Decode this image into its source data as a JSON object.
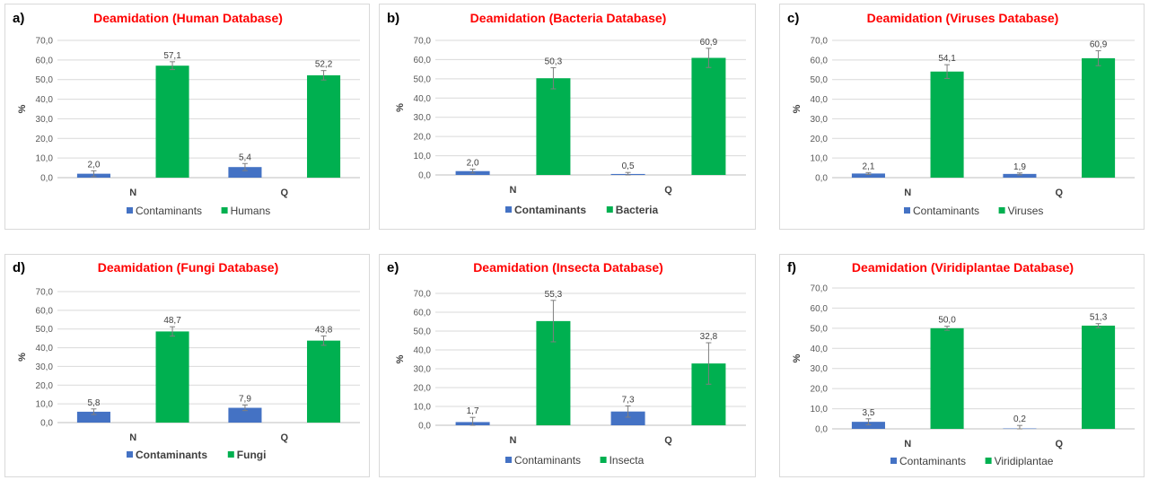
{
  "colors": {
    "contaminants": "#4472c4",
    "organism": "#00b050",
    "title": "#ff0000",
    "grid": "#d9d9d9",
    "axis": "#bfbfbf"
  },
  "chart_data": [
    {
      "panel": "a)",
      "type": "bar",
      "title": "Deamidation (Human Database)",
      "categories": [
        "N",
        "Q"
      ],
      "ylabel": "%",
      "ylim": [
        0,
        70
      ],
      "yticks": [
        "0,0",
        "10,0",
        "20,0",
        "30,0",
        "40,0",
        "50,0",
        "60,0",
        "70,0"
      ],
      "series": [
        {
          "name": "Contaminants",
          "values": [
            2.0,
            5.4
          ],
          "labels": [
            "2,0",
            "5,4"
          ],
          "errors": [
            1.5,
            1.8
          ]
        },
        {
          "name": "Humans",
          "values": [
            57.1,
            52.2
          ],
          "labels": [
            "57,1",
            "52,2"
          ],
          "errors": [
            2.0,
            2.4
          ]
        }
      ],
      "legend": "bottom",
      "grid": true
    },
    {
      "panel": "b)",
      "type": "bar",
      "title": "Deamidation (Bacteria Database)",
      "categories": [
        "N",
        "Q"
      ],
      "ylabel": "%",
      "ylim": [
        0,
        70
      ],
      "yticks": [
        "0,0",
        "10,0",
        "20,0",
        "30,0",
        "40,0",
        "50,0",
        "60,0",
        "70,0"
      ],
      "series": [
        {
          "name": "Contaminants",
          "values": [
            2.0,
            0.5
          ],
          "labels": [
            "2,0",
            "0,5"
          ],
          "errors": [
            1.0,
            0.8
          ]
        },
        {
          "name": "Bacteria",
          "values": [
            50.3,
            60.9
          ],
          "labels": [
            "50,3",
            "60,9"
          ],
          "errors": [
            5.5,
            5.0
          ]
        }
      ],
      "legend": "bottom",
      "grid": true
    },
    {
      "panel": "c)",
      "type": "bar",
      "title": "Deamidation (Viruses Database)",
      "categories": [
        "N",
        "Q"
      ],
      "ylabel": "%",
      "ylim": [
        0,
        70
      ],
      "yticks": [
        "0,0",
        "10,0",
        "20,0",
        "30,0",
        "40,0",
        "50,0",
        "60,0",
        "70,0"
      ],
      "series": [
        {
          "name": "Contaminants",
          "values": [
            2.1,
            1.9
          ],
          "labels": [
            "2,1",
            "1,9"
          ],
          "errors": [
            0.5,
            0.5
          ]
        },
        {
          "name": "Viruses",
          "values": [
            54.1,
            60.9
          ],
          "labels": [
            "54,1",
            "60,9"
          ],
          "errors": [
            3.5,
            3.8
          ]
        }
      ],
      "legend": "bottom",
      "grid": true
    },
    {
      "panel": "d)",
      "type": "bar",
      "title": "Deamidation (Fungi Database)",
      "categories": [
        "N",
        "Q"
      ],
      "ylabel": "%",
      "ylim": [
        0,
        70
      ],
      "yticks": [
        "0,0",
        "10,0",
        "20,0",
        "30,0",
        "40,0",
        "50,0",
        "60,0",
        "70,0"
      ],
      "series": [
        {
          "name": "Contaminants",
          "values": [
            5.8,
            7.9
          ],
          "labels": [
            "5,8",
            "7,9"
          ],
          "errors": [
            1.5,
            1.5
          ]
        },
        {
          "name": "Fungi",
          "values": [
            48.7,
            43.8
          ],
          "labels": [
            "48,7",
            "43,8"
          ],
          "errors": [
            2.5,
            2.5
          ]
        }
      ],
      "legend": "bottom",
      "grid": true
    },
    {
      "panel": "e)",
      "type": "bar",
      "title": "Deamidation (Insecta Database)",
      "categories": [
        "N",
        "Q"
      ],
      "ylabel": "%",
      "ylim": [
        0,
        70
      ],
      "yticks": [
        "0,0",
        "10,0",
        "20,0",
        "30,0",
        "40,0",
        "50,0",
        "60,0",
        "70,0"
      ],
      "series": [
        {
          "name": "Contaminants",
          "values": [
            1.7,
            7.3
          ],
          "labels": [
            "1,7",
            "7,3"
          ],
          "errors": [
            2.5,
            3.0
          ]
        },
        {
          "name": "Insecta",
          "values": [
            55.3,
            32.8
          ],
          "labels": [
            "55,3",
            "32,8"
          ],
          "errors": [
            11.0,
            11.0
          ]
        }
      ],
      "legend": "bottom",
      "grid": true
    },
    {
      "panel": "f)",
      "type": "bar",
      "title": "Deamidation (Viridiplantae Database)",
      "categories": [
        "N",
        "Q"
      ],
      "ylabel": "%",
      "ylim": [
        0,
        70
      ],
      "yticks": [
        "0,0",
        "10,0",
        "20,0",
        "30,0",
        "40,0",
        "50,0",
        "60,0",
        "70,0"
      ],
      "series": [
        {
          "name": "Contaminants",
          "values": [
            3.5,
            0.2
          ],
          "labels": [
            "3,5",
            "0,2"
          ],
          "errors": [
            1.5,
            1.5
          ]
        },
        {
          "name": "Viridiplantae",
          "values": [
            50.0,
            51.3
          ],
          "labels": [
            "50,0",
            "51,3"
          ],
          "errors": [
            1.0,
            1.0
          ]
        }
      ],
      "legend": "bottom",
      "grid": true
    }
  ]
}
